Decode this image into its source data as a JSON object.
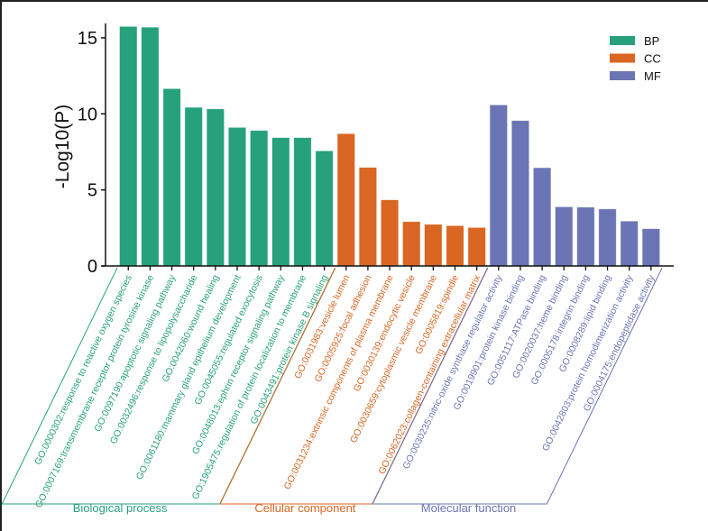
{
  "chart_data": {
    "type": "bar",
    "title": "",
    "xlabel": "",
    "ylabel": "-Log10(P)",
    "ylim": [
      0,
      16
    ],
    "yticks": [
      0,
      5,
      10,
      15
    ],
    "grid": false,
    "legend": {
      "placement": "top-right",
      "entries": [
        {
          "key": "BP",
          "label": "BP",
          "color": "#26a17b"
        },
        {
          "key": "CC",
          "label": "CC",
          "color": "#d96622"
        },
        {
          "key": "MF",
          "label": "MF",
          "color": "#6b74b4"
        }
      ]
    },
    "groups": [
      {
        "key": "BP",
        "label": "Biological process",
        "color": "#26a17b",
        "categories": [
          "GO:0000302:response to reactive oxygen species",
          "GO:0007169:transmembrane receptor protein tyrosine kinase",
          "GO:0097190:apoptotic signaling pathway",
          "GO:0032496:response to lipopolysaccharide",
          "GO:0042060:wound healing",
          "GO:0061180:mammary gland epithelium development",
          "GO:0045055:regulated exocytosis",
          "GO:0048013:ephrin receptor signaling pathway",
          "GO:1905475:regulation of protein localization to membrane",
          "GO:0043491:protein kinase B signaling"
        ],
        "values": [
          15.75,
          15.7,
          11.66,
          10.43,
          10.33,
          9.11,
          8.91,
          8.44,
          8.44,
          7.57
        ]
      },
      {
        "key": "CC",
        "label": "Cellular component",
        "color": "#d96622",
        "categories": [
          "GO:0031983:vesicle lumen",
          "GO:0005925:focal adhesion",
          "GO:0031234:extrinsic components of plasma membrane",
          "GO:0030139:endocytic vesicle",
          "GO:0030659:cytoplasmic vesicle membrane",
          "GO:0005819:spindle",
          "GO:0062023:collagen-containing extracellular matrix"
        ],
        "values": [
          8.7,
          6.48,
          4.35,
          2.92,
          2.74,
          2.65,
          2.53
        ]
      },
      {
        "key": "MF",
        "label": "Molecular function",
        "color": "#6b74b4",
        "categories": [
          "GO:0030235:nitric-oxide synthase regulator activity",
          "GO:0019901:protein kinase binding",
          "GO:0051117:ATPase binding",
          "GO:0020037:heme binding",
          "GO:0005178:integrin binding",
          "GO:0008289:lipid binding",
          "GO:0042803:protein homodimerization activity",
          "GO:0004175:endopeptidase activity"
        ],
        "values": [
          10.59,
          9.56,
          6.46,
          3.89,
          3.87,
          3.75,
          2.95,
          2.45
        ]
      }
    ]
  }
}
